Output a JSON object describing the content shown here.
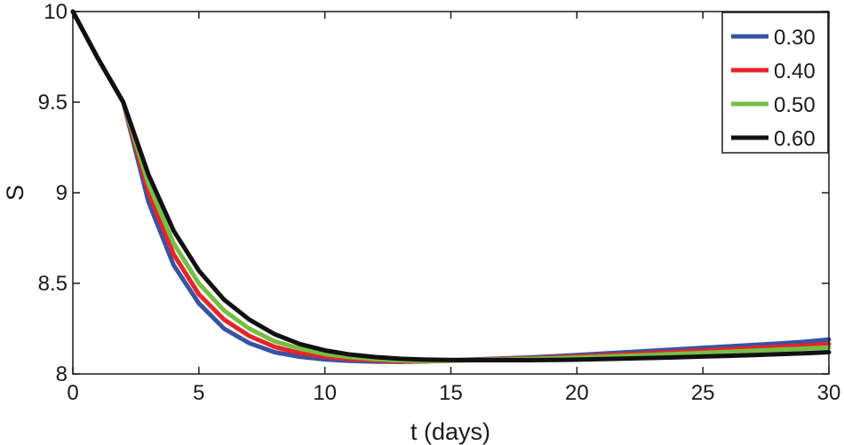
{
  "chart_data": {
    "type": "line",
    "title": "",
    "xlabel": "t (days)",
    "ylabel": "S",
    "xlim": [
      0,
      30
    ],
    "ylim": [
      8,
      10
    ],
    "xticks": [
      0,
      5,
      10,
      15,
      20,
      25,
      30
    ],
    "yticks": [
      8,
      8.5,
      9,
      9.5,
      10
    ],
    "xtick_labels": [
      "0",
      "5",
      "10",
      "15",
      "20",
      "25",
      "30"
    ],
    "ytick_labels": [
      "8",
      "8.5",
      "9",
      "9.5",
      "10"
    ],
    "grid": false,
    "legend_position": "top-right",
    "x": [
      0,
      1,
      2,
      3,
      4,
      5,
      6,
      7,
      8,
      9,
      10,
      11,
      12,
      13,
      14,
      15,
      16,
      17,
      18,
      19,
      20,
      21,
      22,
      23,
      24,
      25,
      26,
      27,
      28,
      29,
      30
    ],
    "series": [
      {
        "name": "0.30",
        "color": "#3853a4",
        "values": [
          10.0,
          9.74,
          9.5,
          8.95,
          8.6,
          8.39,
          8.25,
          8.17,
          8.12,
          8.095,
          8.08,
          8.072,
          8.068,
          8.067,
          8.07,
          8.075,
          8.08,
          8.085,
          8.09,
          8.097,
          8.104,
          8.112,
          8.12,
          8.128,
          8.136,
          8.144,
          8.152,
          8.16,
          8.168,
          8.177,
          8.19
        ]
      },
      {
        "name": "0.40",
        "color": "#e8232a",
        "values": [
          10.0,
          9.74,
          9.5,
          9.0,
          8.66,
          8.44,
          8.3,
          8.21,
          8.15,
          8.115,
          8.095,
          8.082,
          8.074,
          8.07,
          8.07,
          8.073,
          8.078,
          8.082,
          8.086,
          8.091,
          8.097,
          8.103,
          8.109,
          8.116,
          8.122,
          8.129,
          8.136,
          8.143,
          8.15,
          8.157,
          8.165
        ]
      },
      {
        "name": "0.50",
        "color": "#74bf44",
        "values": [
          10.0,
          9.74,
          9.5,
          9.05,
          8.72,
          8.5,
          8.35,
          8.25,
          8.18,
          8.14,
          8.11,
          8.093,
          8.082,
          8.075,
          8.072,
          8.073,
          8.076,
          8.079,
          8.082,
          8.086,
          8.09,
          8.095,
          8.1,
          8.105,
          8.111,
          8.116,
          8.122,
          8.128,
          8.134,
          8.14,
          8.146
        ]
      },
      {
        "name": "0.60",
        "color": "#111111",
        "values": [
          10.0,
          9.74,
          9.5,
          9.1,
          8.79,
          8.57,
          8.41,
          8.3,
          8.22,
          8.165,
          8.13,
          8.107,
          8.093,
          8.084,
          8.079,
          8.077,
          8.076,
          8.076,
          8.076,
          8.077,
          8.079,
          8.082,
          8.085,
          8.088,
          8.092,
          8.096,
          8.1,
          8.104,
          8.109,
          8.114,
          8.12
        ]
      }
    ]
  }
}
